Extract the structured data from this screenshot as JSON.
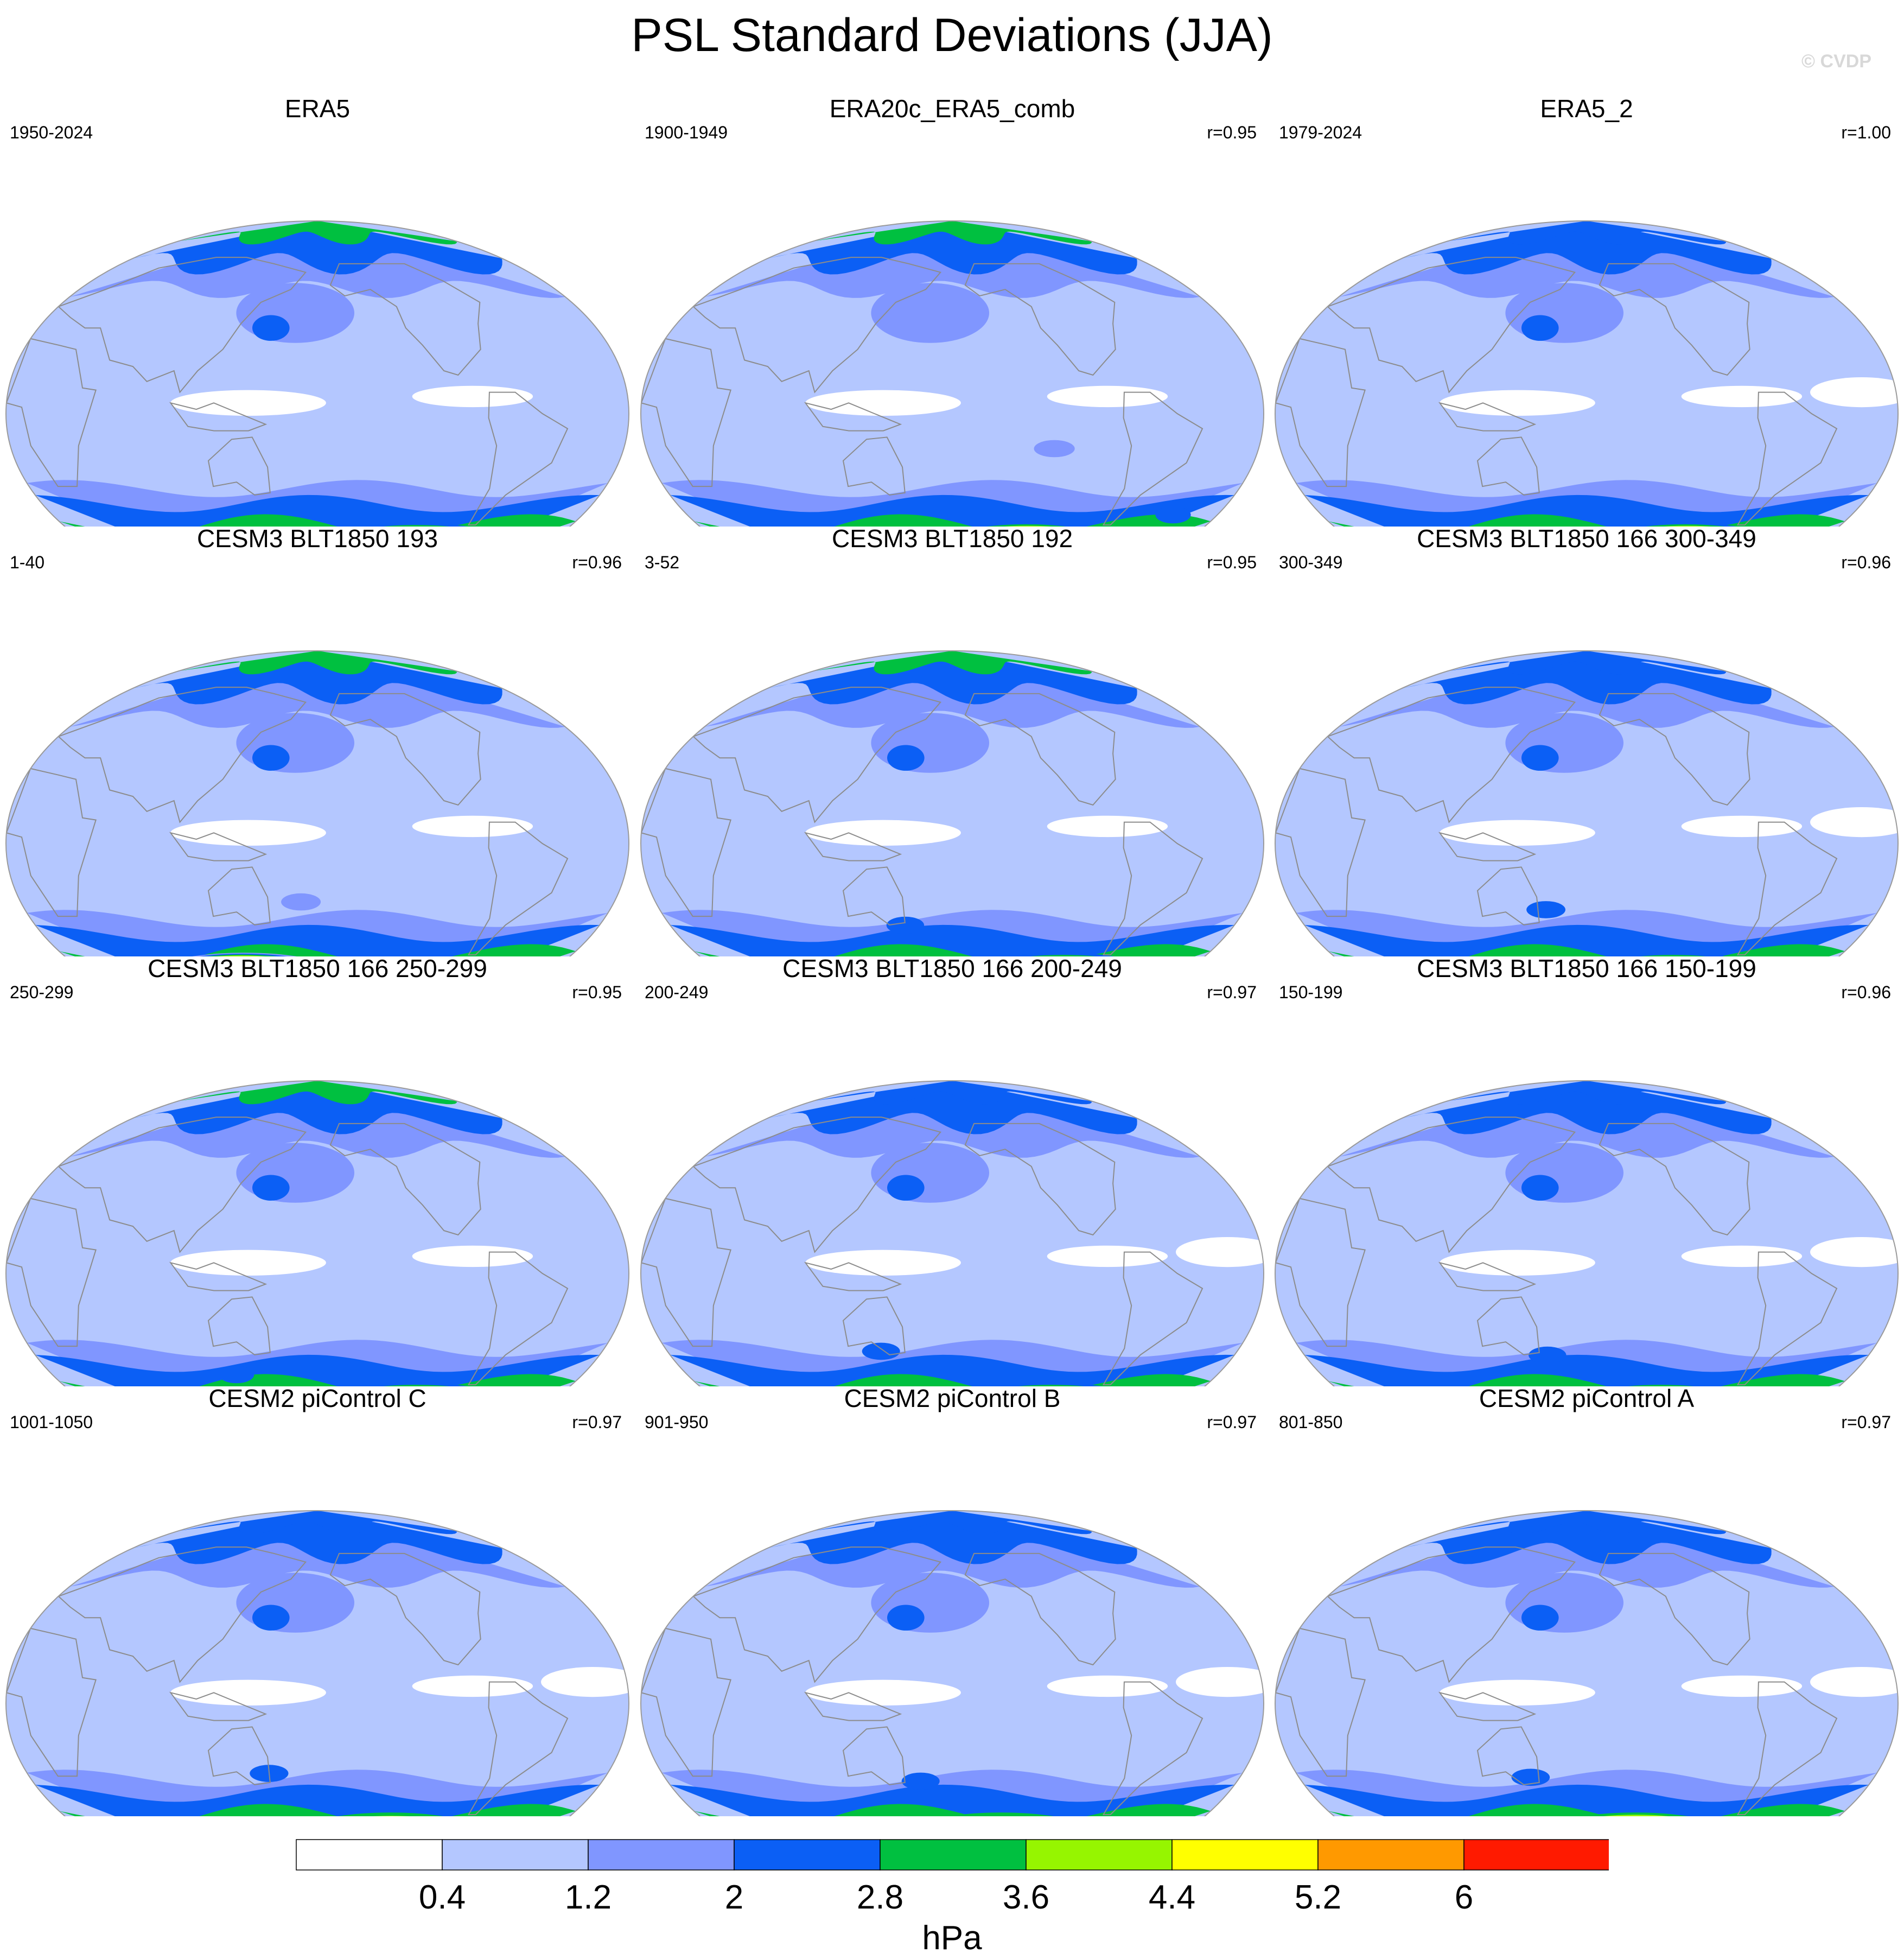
{
  "title": "PSL Standard Deviations (JJA)",
  "watermark": "© CVDP",
  "colors": {
    "bins": [
      "#ffffff",
      "#b4c7ff",
      "#8096ff",
      "#0b5ff5",
      "#00c040",
      "#96f500",
      "#ffff00",
      "#ff9900",
      "#ff1a00"
    ],
    "coast": "#8c8c8c",
    "outline": "#9a9a9a"
  },
  "chart_data": {
    "type": "heatmap",
    "variable": "PSL Standard Deviations (JJA)",
    "units": "hPa",
    "levels": [
      0.4,
      1.2,
      2,
      2.8,
      3.6,
      4.4,
      5.2,
      6
    ],
    "colorbar_labels": [
      "0.4",
      "1.2",
      "2",
      "2.8",
      "3.6",
      "4.4",
      "5.2",
      "6"
    ],
    "panels": [
      {
        "name": "ERA5",
        "period": "1950-2024",
        "r": "",
        "max_level": 7,
        "peak_lon": 80,
        "ross_level": 3,
        "wp": 2,
        "nh_extra": false,
        "spots": [
          [
            -20,
            74,
            3
          ]
        ]
      },
      {
        "name": "ERA20c_ERA5_comb",
        "period": "1900-1949",
        "r": "r=0.95",
        "max_level": 8,
        "peak_lon": 60,
        "ross_level": 3,
        "wp": 1,
        "nh_extra": false,
        "spots": [
          [
            150,
            52,
            3
          ],
          [
            60,
            18,
            2
          ]
        ]
      },
      {
        "name": "ERA5_2",
        "period": "1979-2024",
        "r": "r=1.00",
        "max_level": 8,
        "peak_lon": 80,
        "ross_level": 3,
        "wp": 2,
        "nh_extra": true,
        "spots": [
          [
            -35,
            66,
            3
          ]
        ]
      },
      {
        "name": "CESM3 BLT1850 193",
        "period": "1-40",
        "r": "r=0.96",
        "max_level": 8,
        "peak_lon": -60,
        "ross_level": 2,
        "wp": 3,
        "nh_extra": false,
        "spots": [
          [
            -10,
            30,
            2
          ]
        ]
      },
      {
        "name": "CESM3 BLT1850 192",
        "period": "3-52",
        "r": "r=0.95",
        "max_level": 7,
        "peak_lon": 90,
        "ross_level": 3,
        "wp": 2,
        "nh_extra": false,
        "spots": [
          [
            -30,
            42,
            3
          ]
        ]
      },
      {
        "name": "CESM3 BLT1850 166 300-349",
        "period": "300-349",
        "r": "r=0.96",
        "max_level": 7,
        "peak_lon": 70,
        "ross_level": 3,
        "wp": 2,
        "nh_extra": true,
        "spots": [
          [
            -25,
            34,
            3
          ]
        ]
      },
      {
        "name": "CESM3 BLT1850 166 250-299",
        "period": "250-299",
        "r": "r=0.95",
        "max_level": 7,
        "peak_lon": 80,
        "ross_level": 3,
        "wp": 2,
        "nh_extra": false,
        "spots": [
          [
            -55,
            52,
            3
          ]
        ]
      },
      {
        "name": "CESM3 BLT1850 166 200-249",
        "period": "200-249",
        "r": "r=0.97",
        "max_level": 7,
        "peak_lon": 80,
        "ross_level": 3,
        "wp": 3,
        "nh_extra": true,
        "spots": [
          [
            -45,
            40,
            3
          ]
        ]
      },
      {
        "name": "CESM3 BLT1850 166 150-199",
        "period": "150-199",
        "r": "r=0.96",
        "max_level": 7,
        "peak_lon": 60,
        "ross_level": 3,
        "wp": 3,
        "nh_extra": true,
        "spots": [
          [
            -25,
            42,
            3
          ]
        ]
      },
      {
        "name": "CESM2 piControl C",
        "period": "1001-1050",
        "r": "r=0.97",
        "max_level": 7,
        "peak_lon": 60,
        "ross_level": 4,
        "wp": 3,
        "nh_extra": true,
        "spots": [
          [
            -30,
            36,
            3
          ]
        ]
      },
      {
        "name": "CESM2 piControl B",
        "period": "901-950",
        "r": "r=0.97",
        "max_level": 6,
        "peak_lon": 40,
        "ross_level": 4,
        "wp": 2,
        "nh_extra": true,
        "spots": [
          [
            -20,
            40,
            3
          ]
        ]
      },
      {
        "name": "CESM2 piControl A",
        "period": "801-850",
        "r": "r=0.97",
        "max_level": 8,
        "peak_lon": 40,
        "ross_level": 4,
        "wp": 2,
        "nh_extra": true,
        "spots": [
          [
            -35,
            38,
            3
          ]
        ]
      }
    ]
  }
}
